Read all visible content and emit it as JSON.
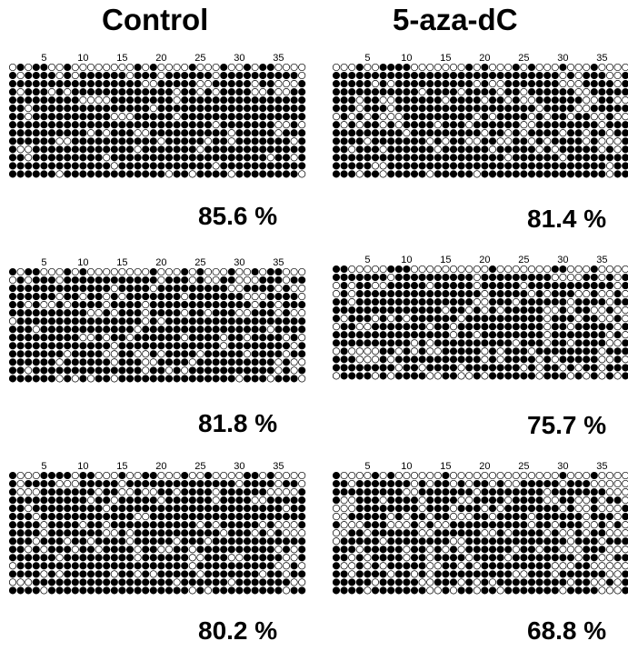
{
  "columns": [
    {
      "title": "Control"
    },
    {
      "title": "5-aza-dC"
    }
  ],
  "tick_labels": [
    "5",
    "10",
    "15",
    "20",
    "25",
    "30",
    "35"
  ],
  "panels": [
    {
      "group": "Control",
      "methylation": "85.6 %"
    },
    {
      "group": "5-aza-dC",
      "methylation": "81.4 %"
    },
    {
      "group": "Control",
      "methylation": "81.8 %"
    },
    {
      "group": "5-aza-dC",
      "methylation": "75.7 %"
    },
    {
      "group": "Control",
      "methylation": "80.2 %"
    },
    {
      "group": "5-aza-dC",
      "methylation": "68.8 %"
    }
  ],
  "colors": {
    "methylated": "#000000",
    "unmethylated": "#ffffff"
  }
}
